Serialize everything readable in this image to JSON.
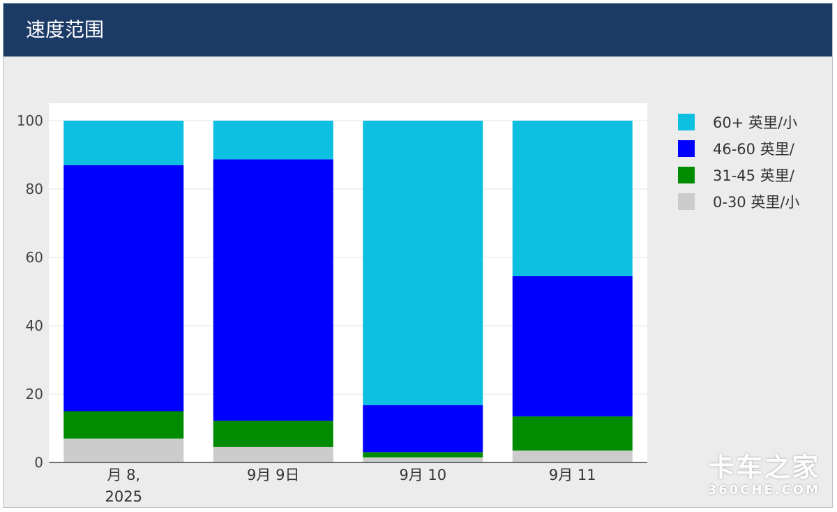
{
  "panel": {
    "title": "速度范围"
  },
  "colors": {
    "header_bg": "#1b3a66",
    "panel_bg": "#ececec",
    "plot_bg": "#ffffff"
  },
  "watermark": {
    "top": "卡车之家",
    "bottom": "360CHE.COM"
  },
  "chart_data": {
    "type": "bar",
    "stacked": true,
    "categories": [
      "月 8, 2025",
      "9月 9日",
      "9月 10",
      "9月 11"
    ],
    "category_lines": [
      [
        "月 8,",
        "2025"
      ],
      [
        "9月 9日"
      ],
      [
        "9月 10"
      ],
      [
        "9月 11"
      ]
    ],
    "series": [
      {
        "name": "0-30 英里/小",
        "color": "#cccccc",
        "values": [
          7.0,
          4.5,
          1.5,
          3.5
        ]
      },
      {
        "name": "31-45 英里/",
        "color": "#008c00",
        "values": [
          8.0,
          7.7,
          1.5,
          10.0
        ]
      },
      {
        "name": "46-60 英里/",
        "color": "#0000ff",
        "values": [
          72.0,
          76.5,
          13.8,
          41.0
        ]
      },
      {
        "name": "60+ 英里/小",
        "color": "#0dbfe0",
        "values": [
          13.0,
          11.3,
          83.2,
          45.5
        ]
      }
    ],
    "legend_order": [
      3,
      2,
      1,
      0
    ],
    "ylim": [
      0,
      100
    ],
    "yticks": [
      0,
      20,
      40,
      60,
      80,
      100
    ],
    "title": "",
    "xlabel": "",
    "ylabel": "",
    "grid": true,
    "legend_position": "right"
  }
}
